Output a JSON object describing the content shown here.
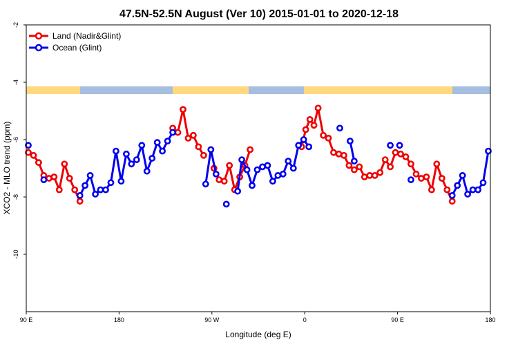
{
  "chart_data": {
    "type": "line",
    "title": "47.5N-52.5N August (Ver 10)   2015-01-01 to 2020-12-18",
    "xlabel": "Longitude (deg E)",
    "ylabel": "XCO2 - MLO trend (ppm)",
    "xlim": [
      90,
      540
    ],
    "ylim": [
      -12,
      -2
    ],
    "x_ticks": [
      {
        "value": 90,
        "label": "90 E"
      },
      {
        "value": 180,
        "label": "180"
      },
      {
        "value": 270,
        "label": "90 W"
      },
      {
        "value": 360,
        "label": "0"
      },
      {
        "value": 450,
        "label": "90 E"
      },
      {
        "value": 540,
        "label": "180"
      }
    ],
    "y_ticks": [
      {
        "value": -2,
        "label": "-2"
      },
      {
        "value": -4,
        "label": "-4"
      },
      {
        "value": -6,
        "label": "-6"
      },
      {
        "value": -8,
        "label": "-8"
      },
      {
        "value": -10,
        "label": "-10"
      }
    ],
    "legend_position": "top-left",
    "land_ocean_strip": {
      "land_color": "#FFD97F",
      "ocean_color": "#A6BEE0"
    },
    "series": [
      {
        "name": "Land (Nadir&Glint)",
        "color": "#EE0000",
        "segments": [
          [
            [
              92,
              -6.45
            ],
            [
              97,
              -6.55
            ],
            [
              102,
              -6.8
            ],
            [
              107,
              -7.25
            ],
            [
              112,
              -7.35
            ],
            [
              117,
              -7.3
            ],
            [
              122,
              -7.75
            ],
            [
              127,
              -6.85
            ],
            [
              132,
              -7.35
            ],
            [
              137,
              -7.75
            ],
            [
              142,
              -8.15
            ]
          ],
          [
            [
              232,
              -5.6
            ],
            [
              237,
              -5.75
            ],
            [
              242,
              -4.95
            ],
            [
              247,
              -5.95
            ],
            [
              252,
              -5.85
            ],
            [
              257,
              -6.25
            ],
            [
              262,
              -6.55
            ]
          ],
          [
            [
              272,
              -7.0
            ],
            [
              277,
              -7.4
            ],
            [
              282,
              -7.45
            ],
            [
              287,
              -6.9
            ],
            [
              292,
              -7.75
            ],
            [
              297,
              -7.3
            ],
            [
              302,
              -6.9
            ],
            [
              307,
              -6.35
            ]
          ],
          [
            [
              357,
              -6.25
            ],
            [
              361,
              -5.65
            ],
            [
              365,
              -5.3
            ],
            [
              369,
              -5.5
            ],
            [
              373,
              -4.9
            ],
            [
              378,
              -5.85
            ],
            [
              383,
              -5.95
            ],
            [
              388,
              -6.45
            ],
            [
              393,
              -6.5
            ],
            [
              398,
              -6.55
            ],
            [
              403,
              -6.9
            ],
            [
              408,
              -7.05
            ],
            [
              413,
              -6.95
            ],
            [
              418,
              -7.3
            ],
            [
              423,
              -7.25
            ],
            [
              428,
              -7.25
            ],
            [
              433,
              -7.15
            ],
            [
              438,
              -6.7
            ],
            [
              443,
              -6.95
            ],
            [
              448,
              -6.45
            ],
            [
              453,
              -6.5
            ],
            [
              458,
              -6.6
            ],
            [
              463,
              -6.85
            ],
            [
              468,
              -7.2
            ],
            [
              473,
              -7.35
            ],
            [
              478,
              -7.3
            ],
            [
              483,
              -7.75
            ],
            [
              488,
              -6.85
            ],
            [
              493,
              -7.35
            ],
            [
              498,
              -7.75
            ],
            [
              503,
              -8.15
            ]
          ]
        ]
      },
      {
        "name": "Ocean (Glint)",
        "color": "#0000EE",
        "segments": [
          [
            [
              92,
              -6.2
            ]
          ],
          [
            [
              107,
              -7.4
            ]
          ],
          [
            [
              142,
              -7.95
            ],
            [
              147,
              -7.6
            ],
            [
              152,
              -7.25
            ],
            [
              157,
              -7.9
            ],
            [
              162,
              -7.75
            ],
            [
              167,
              -7.75
            ],
            [
              172,
              -7.5
            ],
            [
              177,
              -6.4
            ],
            [
              182,
              -7.45
            ],
            [
              187,
              -6.5
            ],
            [
              192,
              -6.85
            ],
            [
              197,
              -6.7
            ],
            [
              202,
              -6.2
            ],
            [
              207,
              -7.1
            ],
            [
              212,
              -6.65
            ],
            [
              217,
              -6.1
            ],
            [
              222,
              -6.4
            ],
            [
              227,
              -6.05
            ],
            [
              232,
              -5.75
            ]
          ],
          [
            [
              264,
              -7.55
            ],
            [
              269,
              -6.35
            ],
            [
              274,
              -7.2
            ]
          ],
          [
            [
              284,
              -8.25
            ]
          ],
          [
            [
              295,
              -7.8
            ],
            [
              299,
              -6.7
            ],
            [
              304,
              -7.05
            ],
            [
              309,
              -7.6
            ],
            [
              314,
              -7.05
            ],
            [
              319,
              -6.95
            ],
            [
              324,
              -6.9
            ],
            [
              329,
              -7.45
            ],
            [
              334,
              -7.25
            ],
            [
              339,
              -7.2
            ],
            [
              344,
              -6.75
            ],
            [
              349,
              -7.0
            ],
            [
              354,
              -6.2
            ],
            [
              359,
              -6.0
            ],
            [
              364,
              -6.25
            ]
          ],
          [
            [
              394,
              -5.6
            ]
          ],
          [
            [
              404,
              -6.05
            ],
            [
              408,
              -6.75
            ]
          ],
          [
            [
              443,
              -6.2
            ]
          ],
          [
            [
              452,
              -6.2
            ]
          ],
          [
            [
              463,
              -7.4
            ]
          ],
          [
            [
              503,
              -7.95
            ],
            [
              508,
              -7.6
            ],
            [
              513,
              -7.25
            ],
            [
              518,
              -7.9
            ],
            [
              523,
              -7.75
            ],
            [
              528,
              -7.75
            ],
            [
              533,
              -7.5
            ],
            [
              538,
              -6.4
            ]
          ]
        ]
      }
    ]
  }
}
